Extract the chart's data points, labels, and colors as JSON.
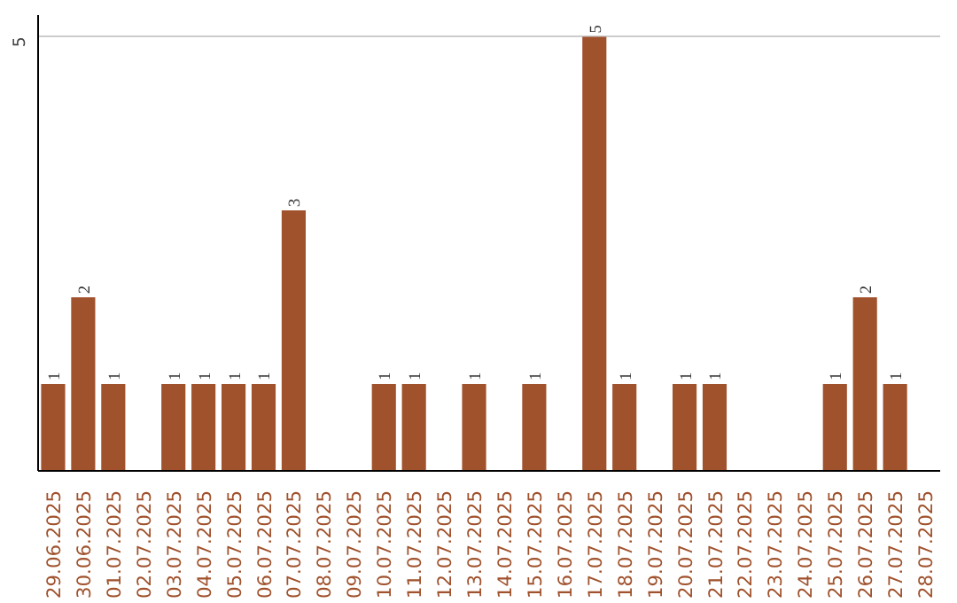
{
  "chart_data": {
    "type": "bar",
    "categories": [
      "29.06.2025",
      "30.06.2025",
      "01.07.2025",
      "02.07.2025",
      "03.07.2025",
      "04.07.2025",
      "05.07.2025",
      "06.07.2025",
      "07.07.2025",
      "08.07.2025",
      "09.07.2025",
      "10.07.2025",
      "11.07.2025",
      "12.07.2025",
      "13.07.2025",
      "14.07.2025",
      "15.07.2025",
      "16.07.2025",
      "17.07.2025",
      "18.07.2025",
      "19.07.2025",
      "20.07.2025",
      "21.07.2025",
      "22.07.2025",
      "23.07.2025",
      "24.07.2025",
      "25.07.2025",
      "26.07.2025",
      "27.07.2025",
      "28.07.2025"
    ],
    "values": [
      1,
      2,
      1,
      0,
      1,
      1,
      1,
      1,
      3,
      0,
      0,
      1,
      1,
      0,
      1,
      0,
      1,
      0,
      5,
      1,
      0,
      1,
      1,
      0,
      0,
      0,
      1,
      2,
      1,
      0
    ],
    "value_labels": [
      "1",
      "2",
      "1",
      null,
      "1",
      "1",
      "1",
      "1",
      "3",
      null,
      null,
      "1",
      "1",
      null,
      "1",
      null,
      "1",
      null,
      "5",
      "1",
      null,
      "1",
      "1",
      null,
      null,
      null,
      "1",
      "2",
      "1",
      null
    ],
    "color": "#a0522d",
    "ylim": [
      0,
      5.25
    ],
    "yticks": [
      5
    ],
    "grid": "y"
  }
}
